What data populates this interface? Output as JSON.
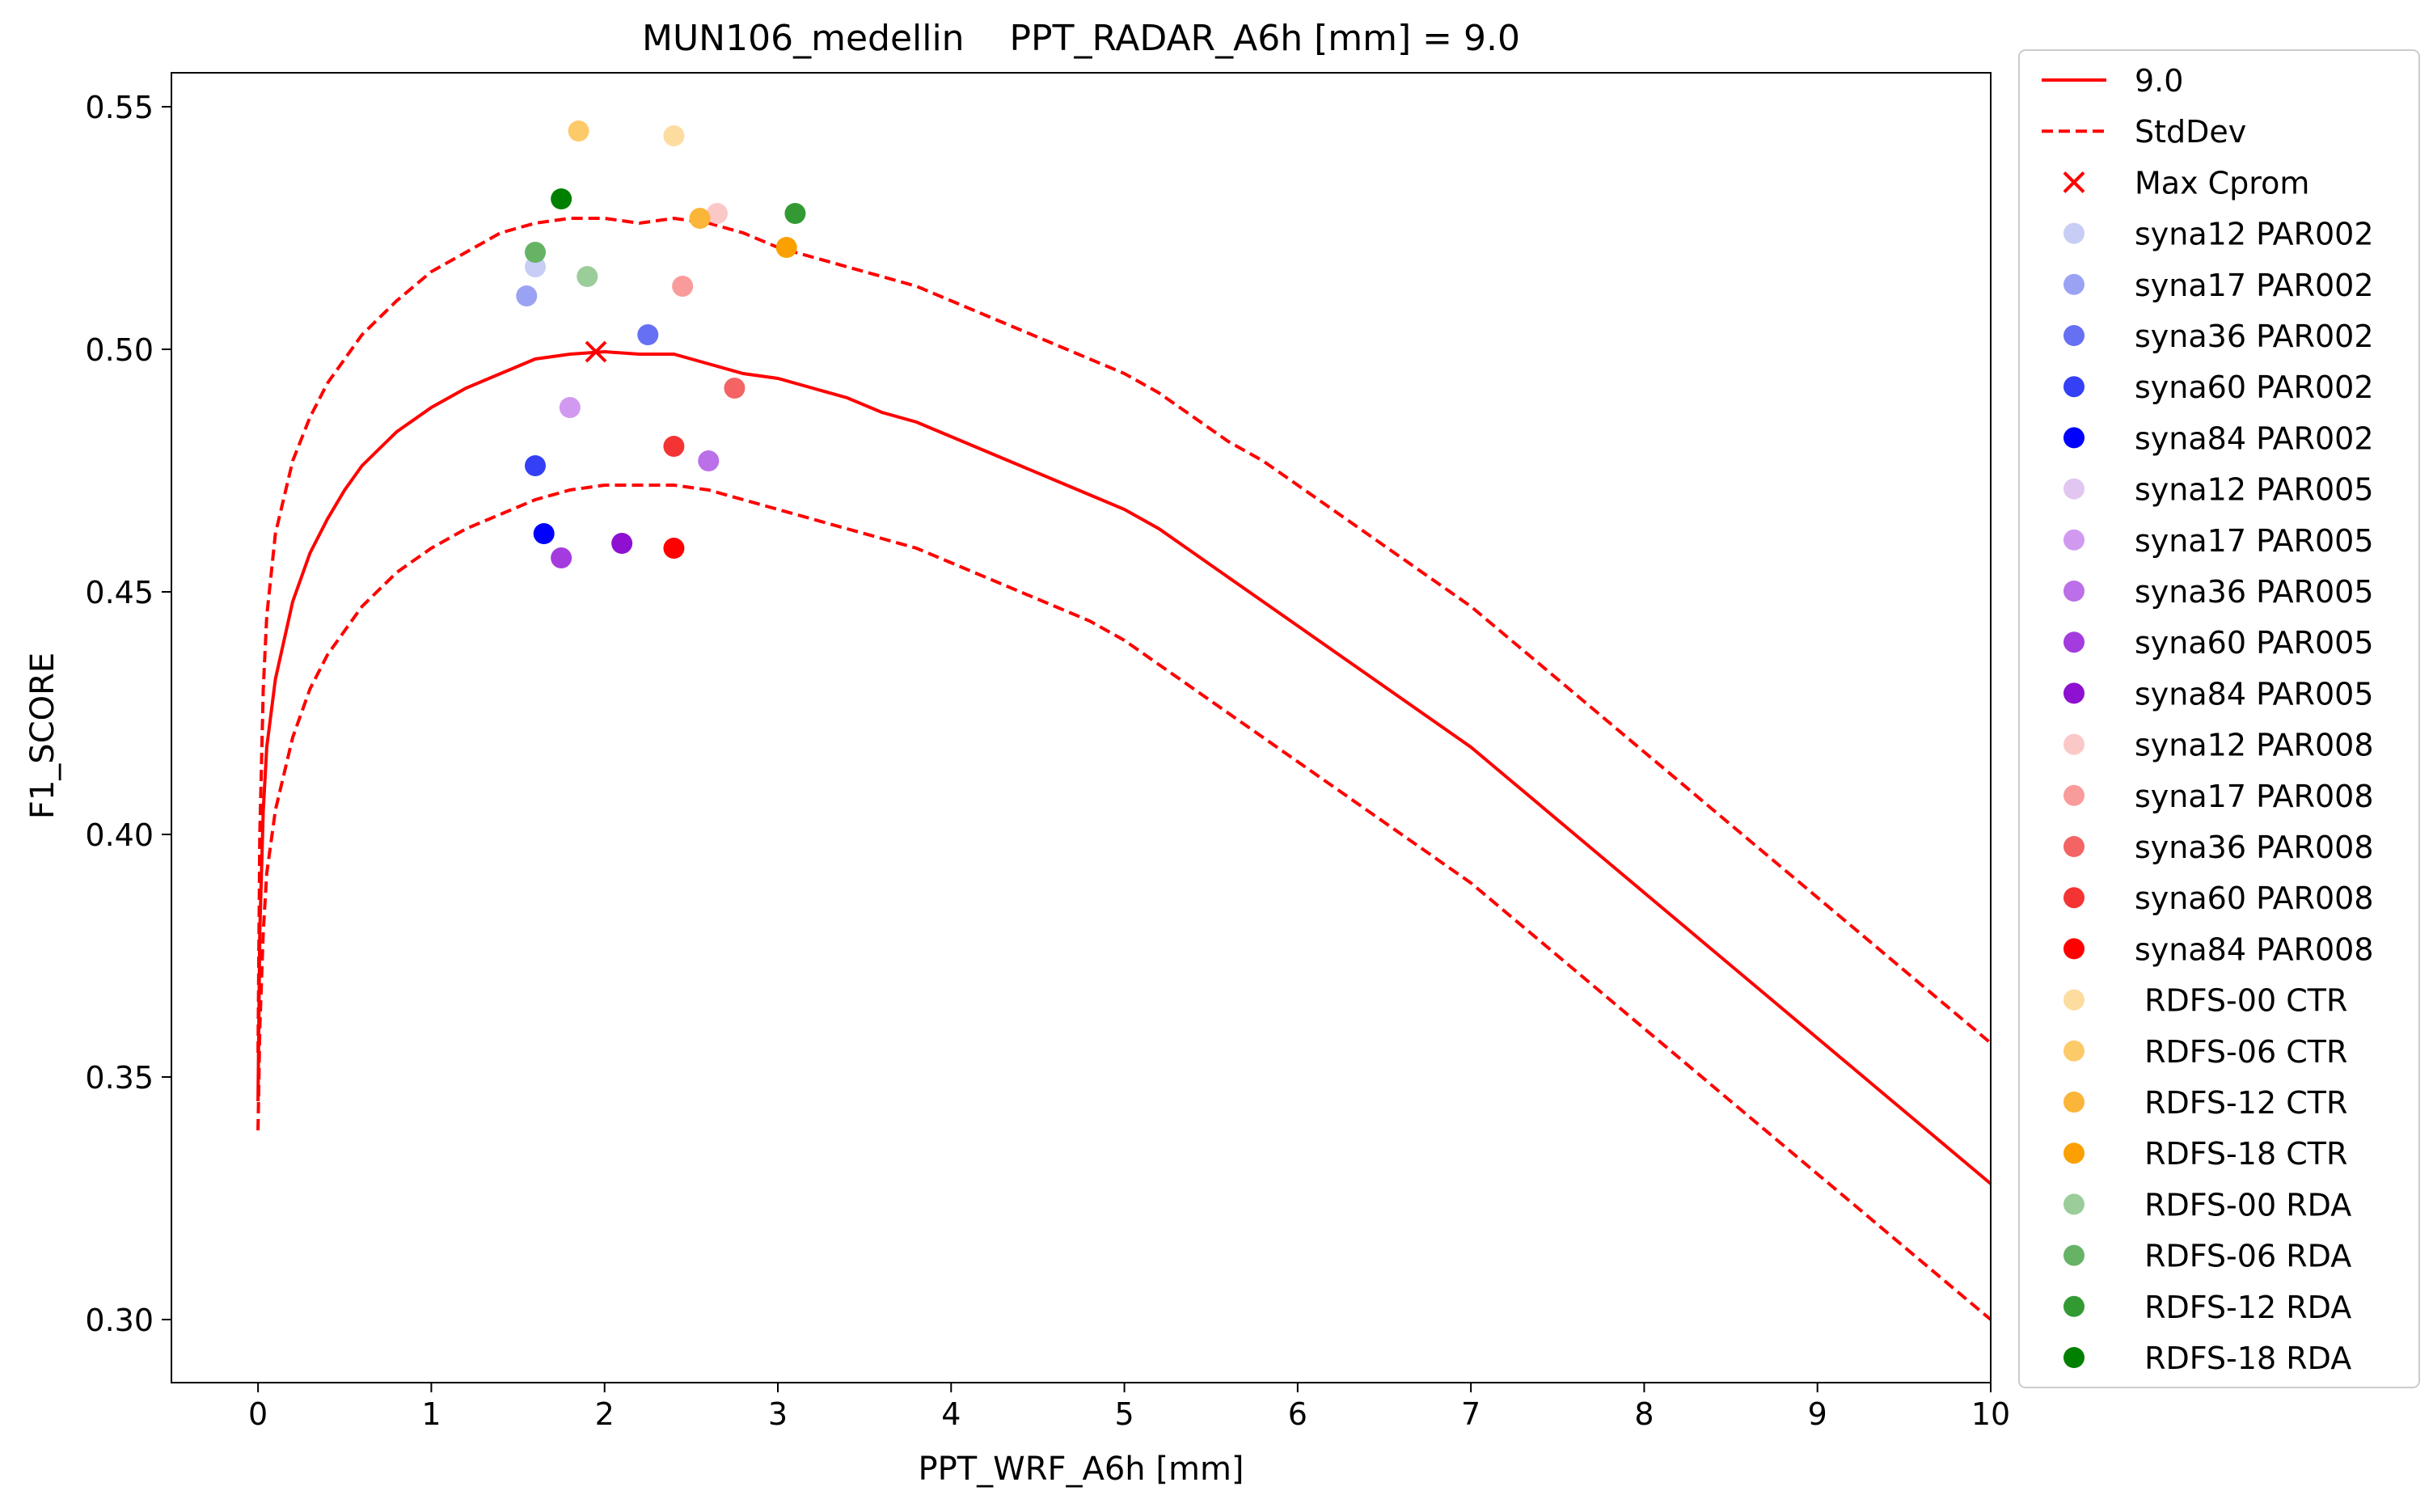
{
  "chart_data": {
    "type": "line",
    "title": "MUN106_medellin    PPT_RADAR_A6h [mm] = 9.0",
    "xlabel": "PPT_WRF_A6h [mm]",
    "ylabel": "F1_SCORE",
    "xlim": [
      -0.5,
      10
    ],
    "ylim": [
      0.287,
      0.557
    ],
    "xticks": [
      0,
      1,
      2,
      3,
      4,
      5,
      6,
      7,
      8,
      9,
      10
    ],
    "yticks": [
      0.3,
      0.35,
      0.4,
      0.45,
      0.5,
      0.55
    ],
    "xtick_labels": [
      "0",
      "1",
      "2",
      "3",
      "4",
      "5",
      "6",
      "7",
      "8",
      "9",
      "10"
    ],
    "ytick_labels": [
      "0.30",
      "0.35",
      "0.40",
      "0.45",
      "0.50",
      "0.55"
    ],
    "grid": false,
    "legend_position": "outside-right",
    "lines": [
      {
        "name": "9.0",
        "color": "#ff0000",
        "style": "solid",
        "x": [
          0,
          0.01,
          0.03,
          0.05,
          0.1,
          0.2,
          0.3,
          0.4,
          0.5,
          0.6,
          0.8,
          1.0,
          1.2,
          1.4,
          1.6,
          1.8,
          2.0,
          2.2,
          2.4,
          2.6,
          2.8,
          3.0,
          3.2,
          3.4,
          3.6,
          3.8,
          4.0,
          4.2,
          4.4,
          4.6,
          4.8,
          5.0,
          5.2,
          5.4,
          5.6,
          5.8,
          6.0,
          6.2,
          6.4,
          6.6,
          6.8,
          7.0,
          7.2,
          7.4,
          7.6,
          7.8,
          8.0,
          8.2,
          8.4,
          8.6,
          8.8,
          9.0,
          9.2,
          9.4,
          9.6,
          9.8,
          10.0
        ],
        "y": [
          0.345,
          0.38,
          0.405,
          0.418,
          0.432,
          0.448,
          0.458,
          0.465,
          0.471,
          0.476,
          0.483,
          0.488,
          0.492,
          0.495,
          0.498,
          0.499,
          0.4995,
          0.499,
          0.499,
          0.497,
          0.495,
          0.494,
          0.492,
          0.49,
          0.487,
          0.485,
          0.482,
          0.479,
          0.476,
          0.473,
          0.47,
          0.467,
          0.463,
          0.458,
          0.453,
          0.448,
          0.443,
          0.438,
          0.433,
          0.428,
          0.423,
          0.418,
          0.412,
          0.406,
          0.4,
          0.394,
          0.388,
          0.382,
          0.376,
          0.37,
          0.364,
          0.358,
          0.352,
          0.346,
          0.34,
          0.334,
          0.328
        ]
      },
      {
        "name": "StdDev",
        "color": "#ff0000",
        "style": "dashed",
        "x": [
          0,
          0.01,
          0.03,
          0.05,
          0.1,
          0.2,
          0.3,
          0.4,
          0.5,
          0.6,
          0.8,
          1.0,
          1.2,
          1.4,
          1.6,
          1.8,
          2.0,
          2.2,
          2.4,
          2.6,
          2.8,
          3.0,
          3.2,
          3.4,
          3.6,
          3.8,
          4.0,
          4.2,
          4.4,
          4.6,
          4.8,
          5.0,
          5.2,
          5.4,
          5.6,
          5.8,
          6.0,
          6.2,
          6.4,
          6.6,
          6.8,
          7.0,
          7.2,
          7.4,
          7.6,
          7.8,
          8.0,
          8.2,
          8.4,
          8.6,
          8.8,
          9.0,
          9.2,
          9.4,
          9.6,
          9.8,
          10.0
        ],
        "y": [
          0.355,
          0.4,
          0.43,
          0.445,
          0.462,
          0.477,
          0.486,
          0.493,
          0.498,
          0.503,
          0.51,
          0.516,
          0.52,
          0.524,
          0.526,
          0.527,
          0.527,
          0.526,
          0.527,
          0.526,
          0.524,
          0.521,
          0.519,
          0.517,
          0.515,
          0.513,
          0.51,
          0.507,
          0.504,
          0.501,
          0.498,
          0.495,
          0.491,
          0.486,
          0.481,
          0.477,
          0.472,
          0.467,
          0.462,
          0.457,
          0.452,
          0.447,
          0.441,
          0.435,
          0.429,
          0.423,
          0.417,
          0.411,
          0.405,
          0.399,
          0.393,
          0.387,
          0.381,
          0.375,
          0.369,
          0.363,
          0.357
        ]
      },
      {
        "name": "",
        "color": "#ff0000",
        "style": "dashed",
        "x": [
          0,
          0.01,
          0.03,
          0.05,
          0.1,
          0.2,
          0.3,
          0.4,
          0.5,
          0.6,
          0.8,
          1.0,
          1.2,
          1.4,
          1.6,
          1.8,
          2.0,
          2.2,
          2.4,
          2.6,
          2.8,
          3.0,
          3.2,
          3.4,
          3.6,
          3.8,
          4.0,
          4.2,
          4.4,
          4.6,
          4.8,
          5.0,
          5.2,
          5.4,
          5.6,
          5.8,
          6.0,
          6.2,
          6.4,
          6.6,
          6.8,
          7.0,
          7.2,
          7.4,
          7.6,
          7.8,
          8.0,
          8.2,
          8.4,
          8.6,
          8.8,
          9.0,
          9.2,
          9.4,
          9.6,
          9.8,
          10.0
        ],
        "y": [
          0.339,
          0.36,
          0.38,
          0.392,
          0.405,
          0.42,
          0.43,
          0.437,
          0.442,
          0.447,
          0.454,
          0.459,
          0.463,
          0.466,
          0.469,
          0.471,
          0.472,
          0.472,
          0.472,
          0.471,
          0.469,
          0.467,
          0.465,
          0.463,
          0.461,
          0.459,
          0.456,
          0.453,
          0.45,
          0.447,
          0.444,
          0.44,
          0.435,
          0.43,
          0.425,
          0.42,
          0.415,
          0.41,
          0.405,
          0.4,
          0.395,
          0.39,
          0.384,
          0.378,
          0.372,
          0.366,
          0.36,
          0.354,
          0.348,
          0.342,
          0.336,
          0.33,
          0.324,
          0.318,
          0.312,
          0.306,
          0.3
        ]
      }
    ],
    "max_marker": {
      "name": "Max Cprom",
      "x": 1.95,
      "y": 0.4995,
      "color": "#ff0000"
    },
    "scatter": [
      {
        "name": "syna12 PAR002",
        "color": "#c8cdf5",
        "x": 1.6,
        "y": 0.517
      },
      {
        "name": "syna17 PAR002",
        "color": "#9aa3f3",
        "x": 1.55,
        "y": 0.511
      },
      {
        "name": "syna36 PAR002",
        "color": "#6670f2",
        "x": 2.25,
        "y": 0.503
      },
      {
        "name": "syna60 PAR002",
        "color": "#3340f5",
        "x": 1.6,
        "y": 0.476
      },
      {
        "name": "syna84 PAR002",
        "color": "#0000ff",
        "x": 1.65,
        "y": 0.462
      },
      {
        "name": "syna12 PAR005",
        "color": "#e2c6f2",
        "x": 1.8,
        "y": 0.488
      },
      {
        "name": "syna17 PAR005",
        "color": "#d19af0",
        "x": 1.8,
        "y": 0.488
      },
      {
        "name": "syna36 PAR005",
        "color": "#bb6fe8",
        "x": 2.6,
        "y": 0.477
      },
      {
        "name": "syna60 PAR005",
        "color": "#a43bde",
        "x": 1.75,
        "y": 0.457
      },
      {
        "name": "syna84 PAR005",
        "color": "#8e10d0",
        "x": 2.1,
        "y": 0.46
      },
      {
        "name": "syna12 PAR008",
        "color": "#fbc8c8",
        "x": 2.65,
        "y": 0.528
      },
      {
        "name": "syna17 PAR008",
        "color": "#fa9b9b",
        "x": 2.45,
        "y": 0.513
      },
      {
        "name": "syna36 PAR008",
        "color": "#f46464",
        "x": 2.75,
        "y": 0.492
      },
      {
        "name": "syna60 PAR008",
        "color": "#f43434",
        "x": 2.4,
        "y": 0.48
      },
      {
        "name": "syna84 PAR008",
        "color": "#ff0000",
        "x": 2.4,
        "y": 0.459
      },
      {
        "name": " RDFS-00 CTR",
        "color": "#fddca0",
        "x": 2.4,
        "y": 0.544
      },
      {
        "name": " RDFS-06 CTR",
        "color": "#fdca6a",
        "x": 1.85,
        "y": 0.545
      },
      {
        "name": " RDFS-12 CTR",
        "color": "#fbb538",
        "x": 2.55,
        "y": 0.527
      },
      {
        "name": " RDFS-18 CTR",
        "color": "#fba000",
        "x": 3.05,
        "y": 0.521
      },
      {
        "name": " RDFS-00 RDA",
        "color": "#9bcd9b",
        "x": 1.9,
        "y": 0.515
      },
      {
        "name": " RDFS-06 RDA",
        "color": "#66b366",
        "x": 1.6,
        "y": 0.52
      },
      {
        "name": " RDFS-12 RDA",
        "color": "#339a33",
        "x": 3.1,
        "y": 0.528
      },
      {
        "name": " RDFS-18 RDA",
        "color": "#008000",
        "x": 1.75,
        "y": 0.531
      }
    ],
    "legend": [
      "9.0",
      "StdDev",
      "Max Cprom",
      "syna12 PAR002",
      "syna17 PAR002",
      "syna36 PAR002",
      "syna60 PAR002",
      "syna84 PAR002",
      "syna12 PAR005",
      "syna17 PAR005",
      "syna36 PAR005",
      "syna60 PAR005",
      "syna84 PAR005",
      "syna12 PAR008",
      "syna17 PAR008",
      "syna36 PAR008",
      "syna60 PAR008",
      "syna84 PAR008",
      " RDFS-00 CTR",
      " RDFS-06 CTR",
      " RDFS-12 CTR",
      " RDFS-18 CTR",
      " RDFS-00 RDA",
      " RDFS-06 RDA",
      " RDFS-12 RDA",
      " RDFS-18 RDA"
    ]
  }
}
